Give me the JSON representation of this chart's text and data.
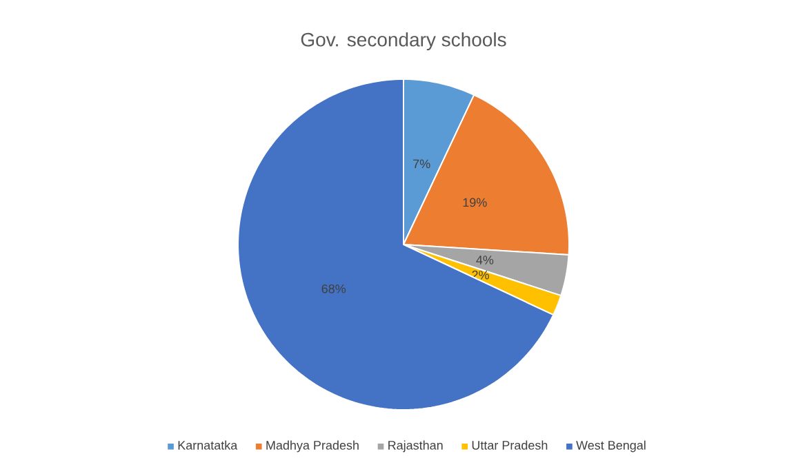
{
  "chart_data": {
    "type": "pie",
    "title": "Gov. secondary schools",
    "categories": [
      "Karnatatka",
      "Madhya Pradesh",
      "Rajasthan",
      "Uttar Pradesh",
      "West Bengal"
    ],
    "values": [
      7,
      19,
      4,
      2,
      68
    ],
    "colors": [
      "#5b9bd5",
      "#ed7d31",
      "#a5a5a5",
      "#ffc000",
      "#4472c4"
    ],
    "value_labels": [
      "7%",
      "19%",
      "4%",
      "2%",
      "68%"
    ],
    "legend": "bottom"
  }
}
